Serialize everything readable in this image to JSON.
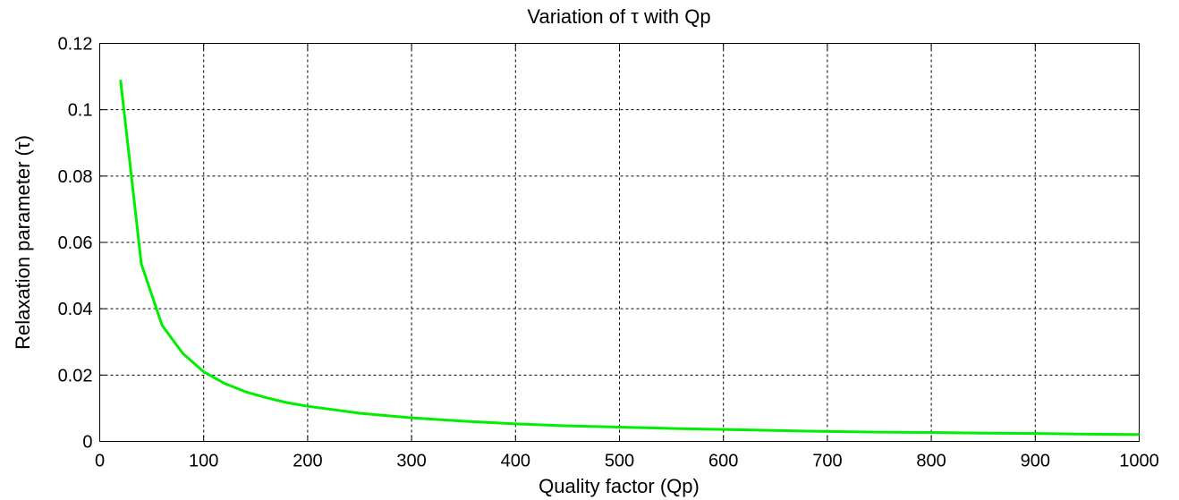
{
  "chart_data": {
    "type": "line",
    "title": "Variation of τ with Qp",
    "xlabel": "Quality factor (Qp)",
    "ylabel": "Relaxation parameter (τ)",
    "xlim": [
      0,
      1000
    ],
    "ylim": [
      0,
      0.12
    ],
    "xticks": [
      0,
      100,
      200,
      300,
      400,
      500,
      600,
      700,
      800,
      900,
      1000
    ],
    "yticks": [
      0,
      0.02,
      0.04,
      0.06,
      0.08,
      0.1,
      0.12
    ],
    "xtick_labels": [
      "0",
      "100",
      "200",
      "300",
      "400",
      "500",
      "600",
      "700",
      "800",
      "900",
      "1000"
    ],
    "ytick_labels": [
      "0",
      "0.02",
      "0.04",
      "0.06",
      "0.08",
      "0.1",
      "0.12"
    ],
    "grid": true,
    "series": [
      {
        "color": "#00ee00",
        "x": [
          20,
          40,
          60,
          80,
          100,
          120,
          140,
          160,
          180,
          200,
          250,
          300,
          350,
          400,
          450,
          500,
          550,
          600,
          650,
          700,
          750,
          800,
          850,
          900,
          950,
          1000
        ],
        "y": [
          0.109,
          0.0535,
          0.035,
          0.0265,
          0.021,
          0.0175,
          0.015,
          0.0132,
          0.0117,
          0.0106,
          0.0085,
          0.0071,
          0.0061,
          0.0053,
          0.0047,
          0.0043,
          0.0039,
          0.0036,
          0.0033,
          0.003,
          0.0028,
          0.0027,
          0.0025,
          0.0024,
          0.0022,
          0.0021
        ]
      }
    ]
  }
}
